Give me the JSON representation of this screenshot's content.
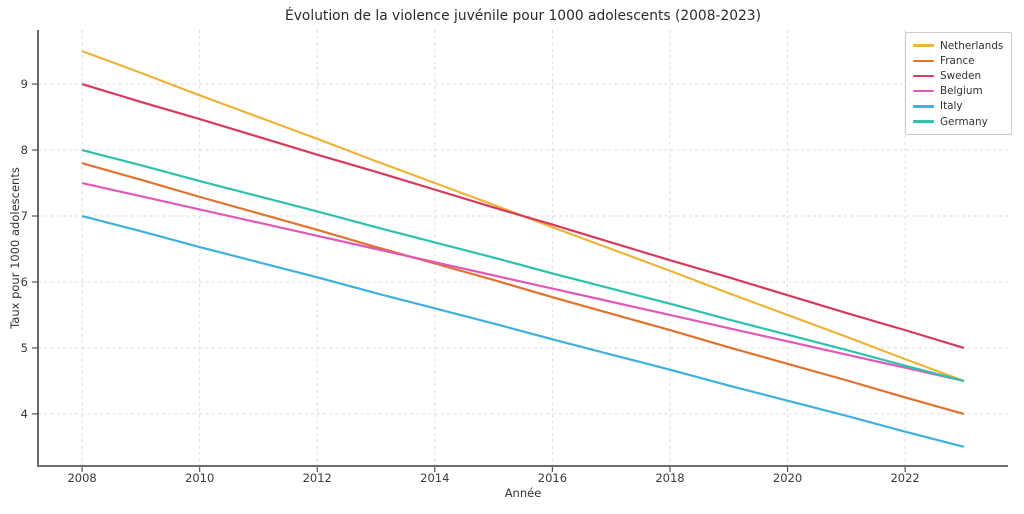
{
  "chart_data": {
    "type": "line",
    "title": "Évolution de la violence juvénile pour 1000 adolescents (2008-2023)",
    "xlabel": "Année",
    "ylabel": "Taux pour 1000 adolescents",
    "x": [
      2008,
      2009,
      2010,
      2011,
      2012,
      2013,
      2014,
      2015,
      2016,
      2017,
      2018,
      2019,
      2020,
      2021,
      2022,
      2023
    ],
    "series": [
      {
        "name": "Netherlands",
        "color": "#ecb53a",
        "values": [
          9.5,
          9.17,
          8.83,
          8.5,
          8.17,
          7.83,
          7.5,
          7.17,
          6.83,
          6.5,
          6.17,
          5.83,
          5.5,
          5.17,
          4.83,
          4.5
        ]
      },
      {
        "name": "France",
        "color": "#e1722f",
        "values": [
          7.8,
          7.55,
          7.29,
          7.04,
          6.79,
          6.53,
          6.28,
          6.03,
          5.77,
          5.52,
          5.27,
          5.01,
          4.76,
          4.51,
          4.25,
          4.0
        ]
      },
      {
        "name": "Sweden",
        "color": "#d63a5c",
        "values": [
          9.0,
          8.73,
          8.47,
          8.2,
          7.93,
          7.67,
          7.4,
          7.13,
          6.87,
          6.6,
          6.33,
          6.07,
          5.8,
          5.53,
          5.27,
          5.0
        ]
      },
      {
        "name": "Belgium",
        "color": "#e059b8",
        "values": [
          7.5,
          7.3,
          7.1,
          6.9,
          6.7,
          6.5,
          6.3,
          6.1,
          5.9,
          5.7,
          5.5,
          5.3,
          5.1,
          4.9,
          4.7,
          4.5
        ]
      },
      {
        "name": "Italy",
        "color": "#3fb0df",
        "values": [
          7.0,
          6.77,
          6.53,
          6.3,
          6.07,
          5.83,
          5.6,
          5.37,
          5.13,
          4.9,
          4.67,
          4.43,
          4.2,
          3.97,
          3.73,
          3.5
        ]
      },
      {
        "name": "Germany",
        "color": "#2cc2ae",
        "values": [
          8.0,
          7.77,
          7.53,
          7.3,
          7.07,
          6.83,
          6.6,
          6.37,
          6.13,
          5.9,
          5.67,
          5.43,
          5.2,
          4.97,
          4.73,
          4.5
        ]
      }
    ],
    "xlim": [
      2007.25,
      2023.75
    ],
    "ylim": [
      3.21,
      9.82
    ],
    "x_ticks": [
      2008,
      2010,
      2012,
      2014,
      2016,
      2018,
      2020,
      2022
    ],
    "y_ticks": [
      4,
      5,
      6,
      7,
      8,
      9
    ],
    "grid": true,
    "grid_style": "dashed",
    "grid_color": "#dcdcdc",
    "spine_color": "#555555",
    "legend_position": "upper right",
    "background": "#ffffff"
  }
}
